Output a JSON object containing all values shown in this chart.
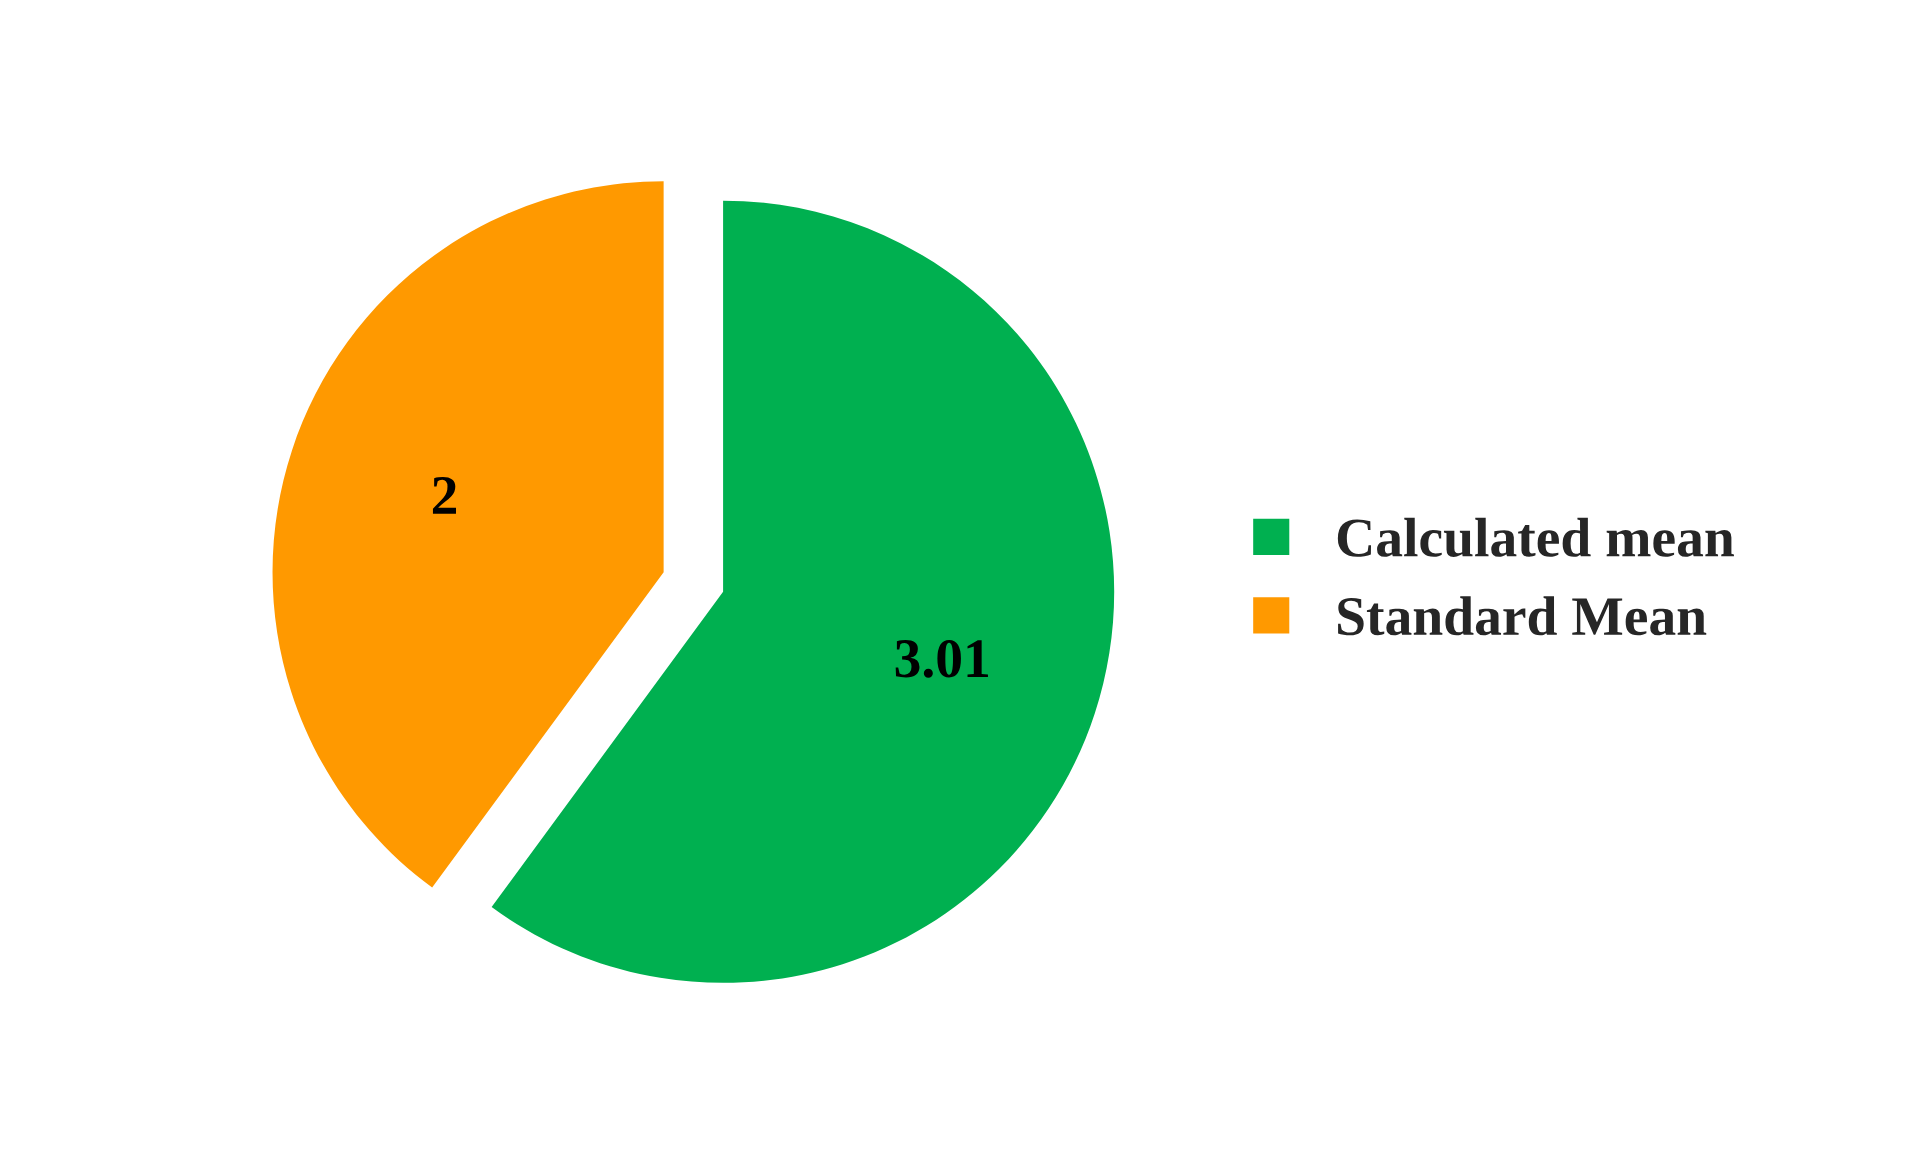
{
  "chart_data": {
    "type": "pie",
    "categories": [
      "Calculated mean",
      "Standard Mean"
    ],
    "values": [
      3.01,
      2
    ],
    "colors": [
      "#00b050",
      "#ff9900"
    ],
    "data_labels": true,
    "legend": "right"
  }
}
